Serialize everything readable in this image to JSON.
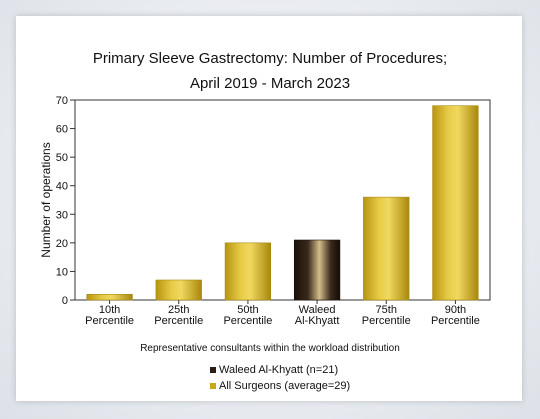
{
  "chart_data": {
    "type": "bar",
    "title": [
      "Primary Sleeve Gastrectomy: Number of Procedures;",
      "April 2019 - March 2023"
    ],
    "ylabel": "Number of operations",
    "xlabel": "Representative consultants within the workload distribution",
    "ylim": [
      0,
      70
    ],
    "yticks": [
      0,
      10,
      20,
      30,
      40,
      50,
      60,
      70
    ],
    "categories": [
      [
        "10th",
        "Percentile"
      ],
      [
        "25th",
        "Percentile"
      ],
      [
        "50th",
        "Percentile"
      ],
      [
        "Waleed",
        "Al-Khyatt"
      ],
      [
        "75th",
        "Percentile"
      ],
      [
        "90th",
        "Percentile"
      ]
    ],
    "values": [
      2,
      7,
      20,
      21,
      36,
      68
    ],
    "highlight_index": 3,
    "colors": {
      "all": "#c8a817",
      "highlight": "#2b1d14"
    },
    "legend": [
      {
        "label": "Waleed Al-Khyatt (n=21)",
        "color": "#2b1d14"
      },
      {
        "label": "All Surgeons (average=29)",
        "color": "#c8a817"
      }
    ],
    "grid": false,
    "legend_position": "bottom"
  }
}
